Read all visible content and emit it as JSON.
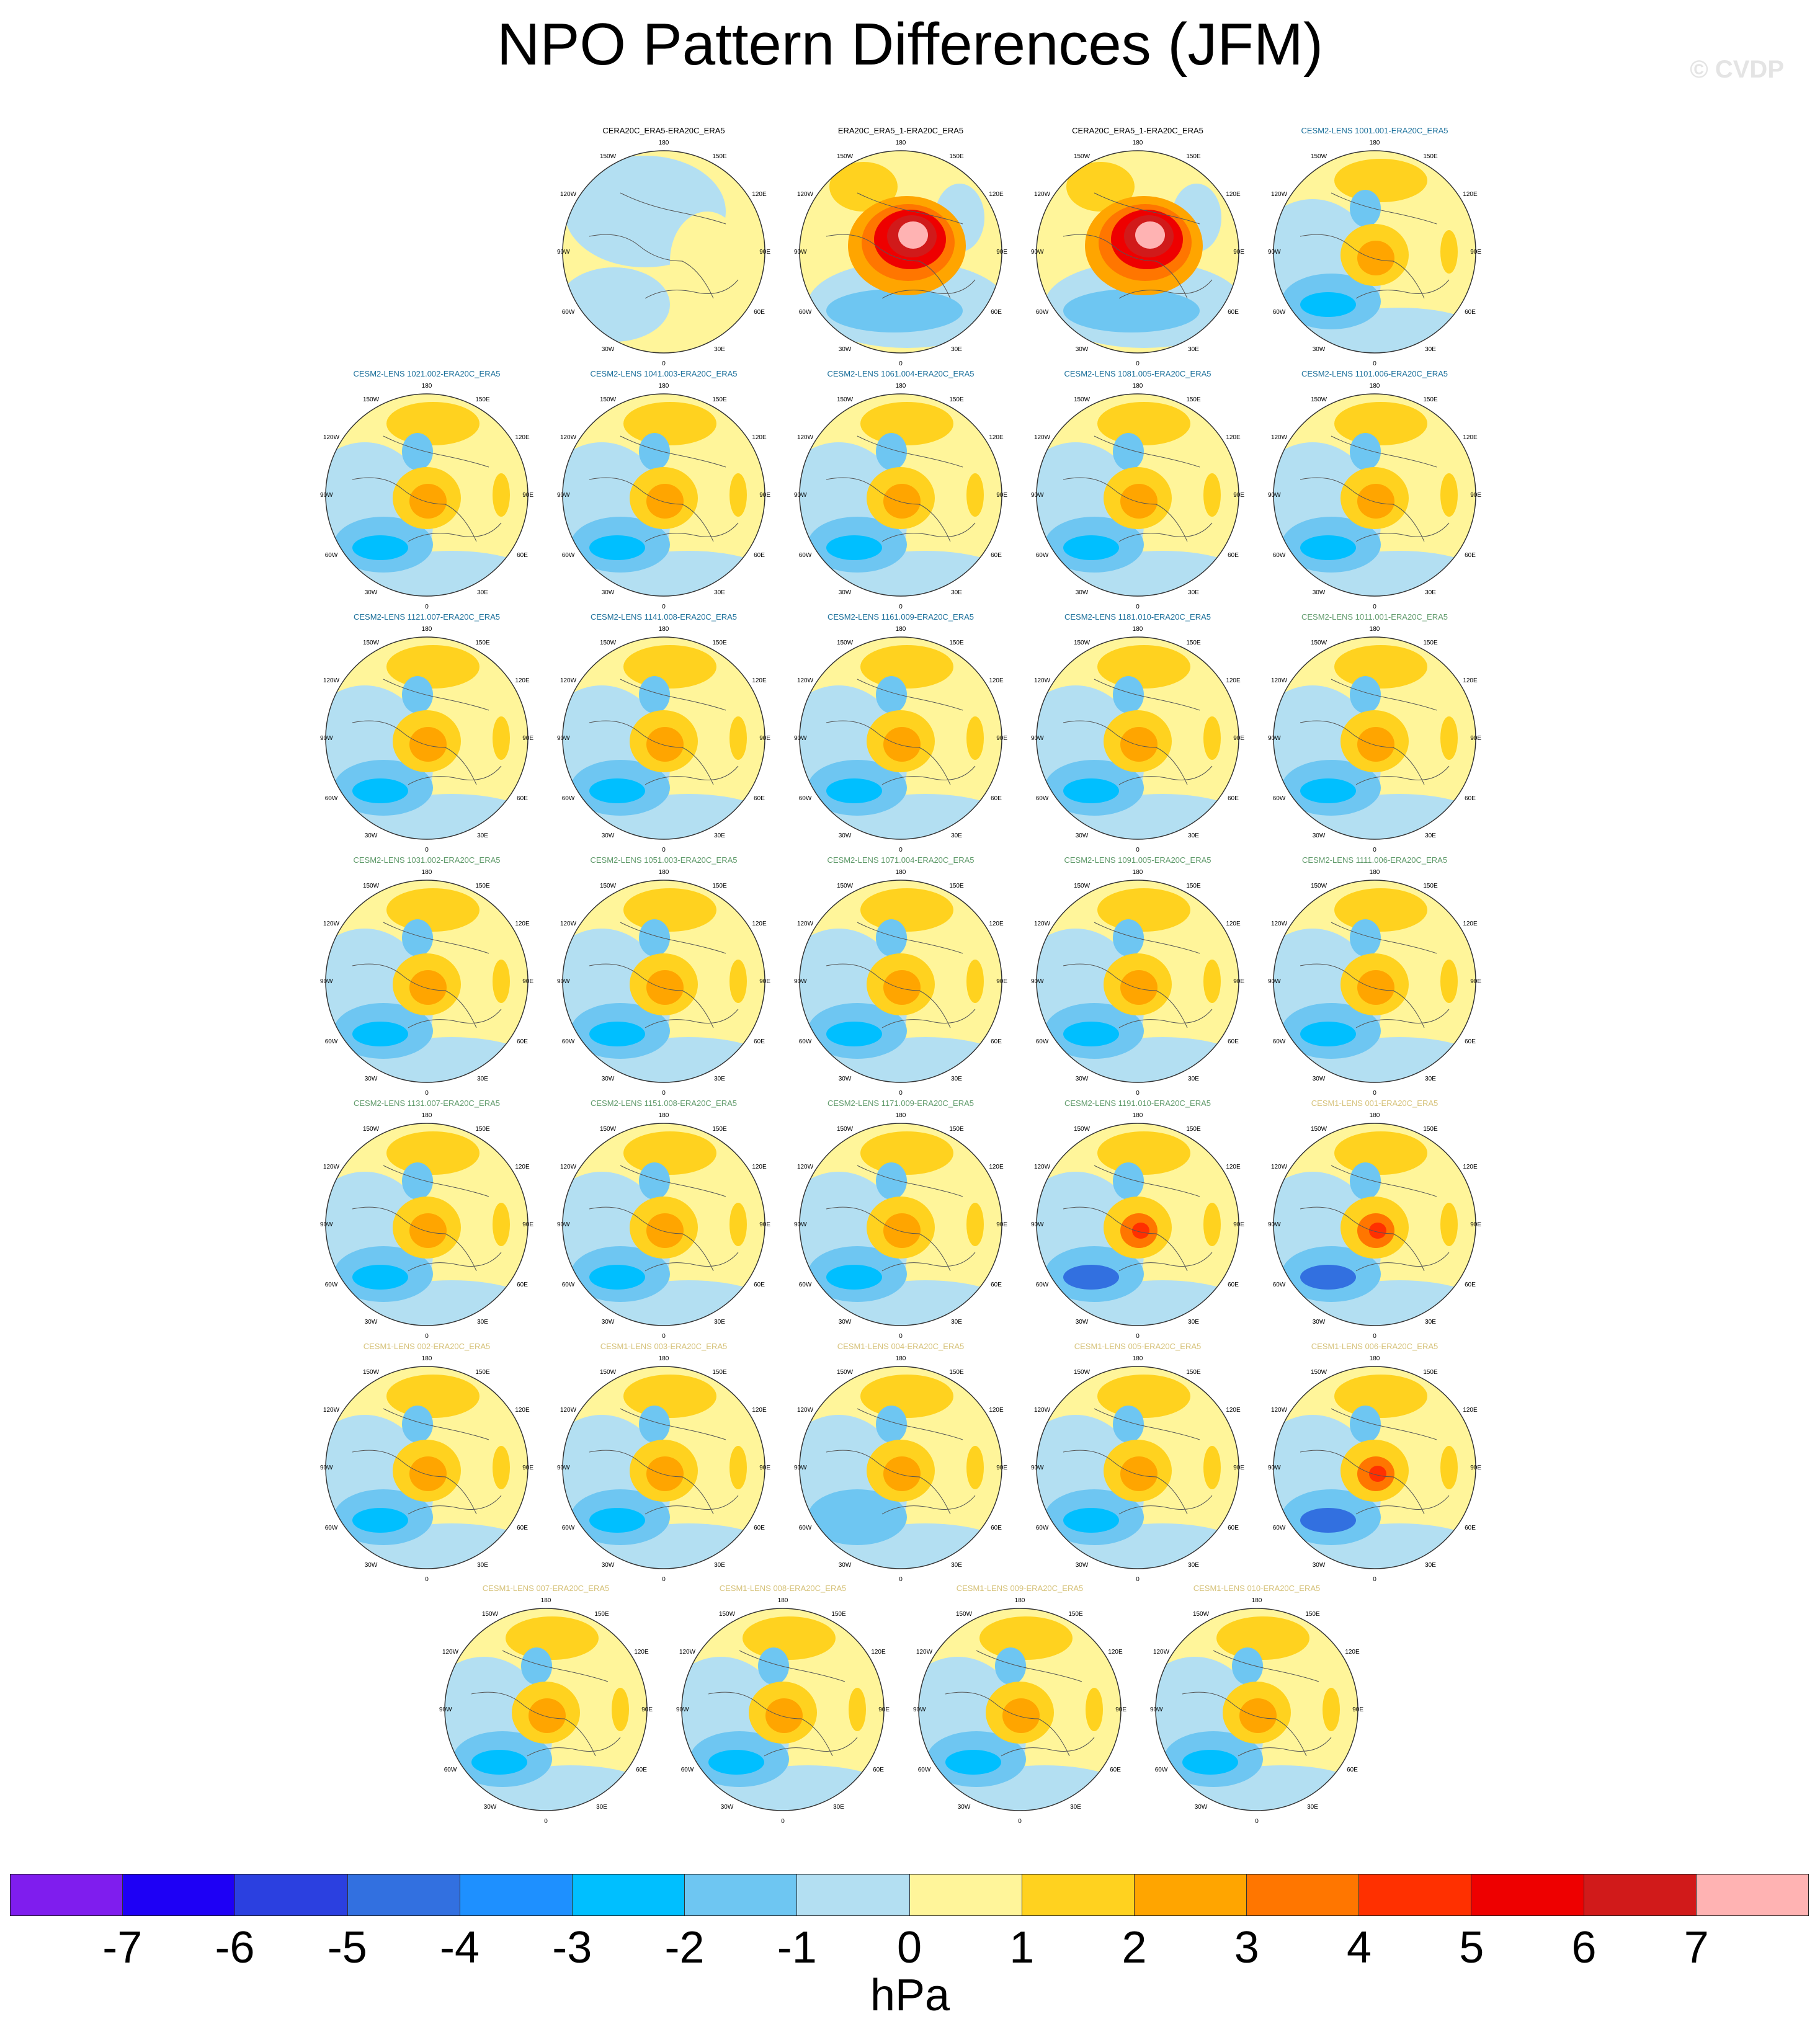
{
  "title": "NPO Pattern Differences (JFM)",
  "watermark": "© CVDP",
  "map_labels": {
    "top": "180",
    "bottom": "0",
    "left": "90W",
    "right": "90E",
    "upper_left": "150W",
    "upper_right": "150E",
    "mid_upper_left": "120W",
    "mid_upper_right": "120E",
    "mid_lower_left": "60W",
    "mid_lower_right": "60E",
    "lower_left": "30W",
    "lower_right": "30E"
  },
  "colors": {
    "background": "#ffffff",
    "title_black": "#000000",
    "title_cesm2_early": "#1a6f9a",
    "title_cesm2_late": "#5f9a6a",
    "title_cesm1": "#d6c27a"
  },
  "rows": [
    [
      {
        "title": "CERA20C_ERA5-ERA20C_ERA5",
        "title_color": "#000000",
        "pattern": "weak"
      },
      {
        "title": "ERA20C_ERA5_1-ERA20C_ERA5",
        "title_color": "#000000",
        "pattern": "strong"
      },
      {
        "title": "CERA20C_ERA5_1-ERA20C_ERA5",
        "title_color": "#000000",
        "pattern": "strong"
      },
      {
        "title": "CESM2-LENS 1001.001-ERA20C_ERA5",
        "title_color": "#1a6f9a",
        "pattern": "model"
      }
    ],
    [
      {
        "title": "CESM2-LENS 1021.002-ERA20C_ERA5",
        "title_color": "#1a6f9a",
        "pattern": "model"
      },
      {
        "title": "CESM2-LENS 1041.003-ERA20C_ERA5",
        "title_color": "#1a6f9a",
        "pattern": "model"
      },
      {
        "title": "CESM2-LENS 1061.004-ERA20C_ERA5",
        "title_color": "#1a6f9a",
        "pattern": "model"
      },
      {
        "title": "CESM2-LENS 1081.005-ERA20C_ERA5",
        "title_color": "#1a6f9a",
        "pattern": "model"
      },
      {
        "title": "CESM2-LENS 1101.006-ERA20C_ERA5",
        "title_color": "#1a6f9a",
        "pattern": "model"
      }
    ],
    [
      {
        "title": "CESM2-LENS 1121.007-ERA20C_ERA5",
        "title_color": "#1a6f9a",
        "pattern": "model"
      },
      {
        "title": "CESM2-LENS 1141.008-ERA20C_ERA5",
        "title_color": "#1a6f9a",
        "pattern": "model"
      },
      {
        "title": "CESM2-LENS 1161.009-ERA20C_ERA5",
        "title_color": "#1a6f9a",
        "pattern": "model"
      },
      {
        "title": "CESM2-LENS 1181.010-ERA20C_ERA5",
        "title_color": "#1a6f9a",
        "pattern": "model"
      },
      {
        "title": "CESM2-LENS 1011.001-ERA20C_ERA5",
        "title_color": "#5f9a6a",
        "pattern": "model"
      }
    ],
    [
      {
        "title": "CESM2-LENS 1031.002-ERA20C_ERA5",
        "title_color": "#5f9a6a",
        "pattern": "model"
      },
      {
        "title": "CESM2-LENS 1051.003-ERA20C_ERA5",
        "title_color": "#5f9a6a",
        "pattern": "model"
      },
      {
        "title": "CESM2-LENS 1071.004-ERA20C_ERA5",
        "title_color": "#5f9a6a",
        "pattern": "model"
      },
      {
        "title": "CESM2-LENS 1091.005-ERA20C_ERA5",
        "title_color": "#5f9a6a",
        "pattern": "model"
      },
      {
        "title": "CESM2-LENS 1111.006-ERA20C_ERA5",
        "title_color": "#5f9a6a",
        "pattern": "model"
      }
    ],
    [
      {
        "title": "CESM2-LENS 1131.007-ERA20C_ERA5",
        "title_color": "#5f9a6a",
        "pattern": "model"
      },
      {
        "title": "CESM2-LENS 1151.008-ERA20C_ERA5",
        "title_color": "#5f9a6a",
        "pattern": "model"
      },
      {
        "title": "CESM2-LENS 1171.009-ERA20C_ERA5",
        "title_color": "#5f9a6a",
        "pattern": "model"
      },
      {
        "title": "CESM2-LENS 1191.010-ERA20C_ERA5",
        "title_color": "#5f9a6a",
        "pattern": "model_strong"
      },
      {
        "title": "CESM1-LENS 001-ERA20C_ERA5",
        "title_color": "#d6c27a",
        "pattern": "model_strong"
      }
    ],
    [
      {
        "title": "CESM1-LENS 002-ERA20C_ERA5",
        "title_color": "#d6c27a",
        "pattern": "model"
      },
      {
        "title": "CESM1-LENS 003-ERA20C_ERA5",
        "title_color": "#d6c27a",
        "pattern": "model"
      },
      {
        "title": "CESM1-LENS 004-ERA20C_ERA5",
        "title_color": "#d6c27a",
        "pattern": "model_weak"
      },
      {
        "title": "CESM1-LENS 005-ERA20C_ERA5",
        "title_color": "#d6c27a",
        "pattern": "model"
      },
      {
        "title": "CESM1-LENS 006-ERA20C_ERA5",
        "title_color": "#d6c27a",
        "pattern": "model_strong"
      }
    ],
    [
      {
        "title": "CESM1-LENS 007-ERA20C_ERA5",
        "title_color": "#d6c27a",
        "pattern": "model"
      },
      {
        "title": "CESM1-LENS 008-ERA20C_ERA5",
        "title_color": "#d6c27a",
        "pattern": "model"
      },
      {
        "title": "CESM1-LENS 009-ERA20C_ERA5",
        "title_color": "#d6c27a",
        "pattern": "model"
      },
      {
        "title": "CESM1-LENS 010-ERA20C_ERA5",
        "title_color": "#d6c27a",
        "pattern": "model"
      }
    ]
  ],
  "colorbar": {
    "units": "hPa",
    "labels": [
      "-7",
      "-6",
      "-5",
      "-4",
      "-3",
      "-2",
      "-1",
      "0",
      "1",
      "2",
      "3",
      "4",
      "5",
      "6",
      "7"
    ],
    "colors": [
      "#7f1dee",
      "#1e00f5",
      "#2b40e0",
      "#3270e0",
      "#1e90ff",
      "#00bfff",
      "#6ec6f2",
      "#b3dff2",
      "#fff59a",
      "#ffd21f",
      "#ffa500",
      "#ff7600",
      "#ff3000",
      "#ee0000",
      "#d11a1a",
      "#ffb3b3"
    ]
  }
}
